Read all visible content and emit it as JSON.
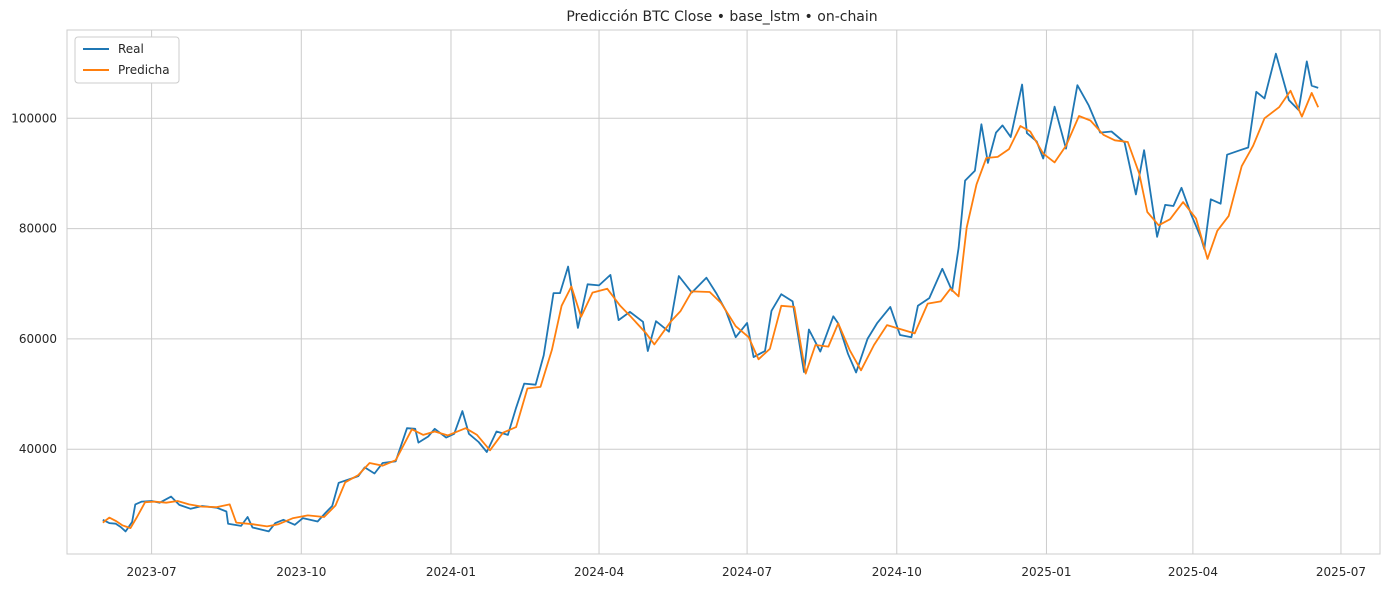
{
  "chart_data": {
    "type": "line",
    "title": "Predicción BTC Close • base_lstm • on-chain",
    "xlabel": "",
    "ylabel": "",
    "grid": true,
    "legend_position": "top-left",
    "x_range": [
      "2023-05-10",
      "2025-07-25"
    ],
    "y_range": [
      21000,
      116000
    ],
    "x_ticks": [
      "2023-07-01",
      "2023-10-01",
      "2024-01-01",
      "2024-04-01",
      "2024-07-01",
      "2024-10-01",
      "2025-01-01",
      "2025-04-01",
      "2025-07-01"
    ],
    "x_tick_labels": [
      "2023-07",
      "2023-10",
      "2024-01",
      "2024-04",
      "2024-07",
      "2024-10",
      "2025-01",
      "2025-04",
      "2025-07"
    ],
    "y_ticks": [
      40000,
      60000,
      80000,
      100000
    ],
    "y_tick_labels": [
      "40000",
      "60000",
      "80000",
      "100000"
    ],
    "series": [
      {
        "name": "Real",
        "color": "#1f77b4",
        "points": [
          [
            "2023-06-01",
            27200
          ],
          [
            "2023-06-05",
            26600
          ],
          [
            "2023-06-09",
            26500
          ],
          [
            "2023-06-12",
            25900
          ],
          [
            "2023-06-15",
            25100
          ],
          [
            "2023-06-19",
            26800
          ],
          [
            "2023-06-21",
            30000
          ],
          [
            "2023-06-25",
            30500
          ],
          [
            "2023-07-01",
            30600
          ],
          [
            "2023-07-06",
            30300
          ],
          [
            "2023-07-13",
            31400
          ],
          [
            "2023-07-18",
            29900
          ],
          [
            "2023-07-25",
            29200
          ],
          [
            "2023-08-01",
            29700
          ],
          [
            "2023-08-10",
            29400
          ],
          [
            "2023-08-16",
            28700
          ],
          [
            "2023-08-17",
            26500
          ],
          [
            "2023-08-25",
            26100
          ],
          [
            "2023-08-29",
            27700
          ],
          [
            "2023-09-01",
            25800
          ],
          [
            "2023-09-11",
            25100
          ],
          [
            "2023-09-15",
            26600
          ],
          [
            "2023-09-20",
            27200
          ],
          [
            "2023-09-27",
            26300
          ],
          [
            "2023-10-02",
            27500
          ],
          [
            "2023-10-11",
            26900
          ],
          [
            "2023-10-16",
            28500
          ],
          [
            "2023-10-20",
            29700
          ],
          [
            "2023-10-24",
            33900
          ],
          [
            "2023-10-31",
            34600
          ],
          [
            "2023-11-05",
            35100
          ],
          [
            "2023-11-09",
            36700
          ],
          [
            "2023-11-15",
            35600
          ],
          [
            "2023-11-20",
            37500
          ],
          [
            "2023-11-28",
            37800
          ],
          [
            "2023-12-05",
            43800
          ],
          [
            "2023-12-10",
            43700
          ],
          [
            "2023-12-12",
            41200
          ],
          [
            "2023-12-18",
            42300
          ],
          [
            "2023-12-22",
            43700
          ],
          [
            "2023-12-29",
            42100
          ],
          [
            "2024-01-03",
            42800
          ],
          [
            "2024-01-08",
            46900
          ],
          [
            "2024-01-12",
            42800
          ],
          [
            "2024-01-18",
            41300
          ],
          [
            "2024-01-23",
            39500
          ],
          [
            "2024-01-29",
            43200
          ],
          [
            "2024-02-05",
            42600
          ],
          [
            "2024-02-10",
            47500
          ],
          [
            "2024-02-15",
            51900
          ],
          [
            "2024-02-22",
            51700
          ],
          [
            "2024-02-27",
            57000
          ],
          [
            "2024-03-04",
            68300
          ],
          [
            "2024-03-08",
            68300
          ],
          [
            "2024-03-13",
            73100
          ],
          [
            "2024-03-19",
            62000
          ],
          [
            "2024-03-25",
            69900
          ],
          [
            "2024-04-01",
            69700
          ],
          [
            "2024-04-08",
            71600
          ],
          [
            "2024-04-13",
            63400
          ],
          [
            "2024-04-20",
            64900
          ],
          [
            "2024-04-28",
            63100
          ],
          [
            "2024-05-01",
            57800
          ],
          [
            "2024-05-06",
            63200
          ],
          [
            "2024-05-14",
            61300
          ],
          [
            "2024-05-20",
            71400
          ],
          [
            "2024-05-28",
            68400
          ],
          [
            "2024-06-06",
            71100
          ],
          [
            "2024-06-12",
            68300
          ],
          [
            "2024-06-18",
            65100
          ],
          [
            "2024-06-24",
            60300
          ],
          [
            "2024-07-01",
            62900
          ],
          [
            "2024-07-05",
            56700
          ],
          [
            "2024-07-12",
            57800
          ],
          [
            "2024-07-16",
            65100
          ],
          [
            "2024-07-22",
            68100
          ],
          [
            "2024-07-29",
            66800
          ],
          [
            "2024-08-05",
            54000
          ],
          [
            "2024-08-08",
            61700
          ],
          [
            "2024-08-15",
            57700
          ],
          [
            "2024-08-23",
            64100
          ],
          [
            "2024-08-26",
            62800
          ],
          [
            "2024-09-01",
            57300
          ],
          [
            "2024-09-06",
            53900
          ],
          [
            "2024-09-13",
            60000
          ],
          [
            "2024-09-19",
            62900
          ],
          [
            "2024-09-27",
            65800
          ],
          [
            "2024-10-03",
            60700
          ],
          [
            "2024-10-10",
            60300
          ],
          [
            "2024-10-14",
            66000
          ],
          [
            "2024-10-21",
            67400
          ],
          [
            "2024-10-29",
            72700
          ],
          [
            "2024-11-04",
            68700
          ],
          [
            "2024-11-08",
            76500
          ],
          [
            "2024-11-12",
            88700
          ],
          [
            "2024-11-18",
            90500
          ],
          [
            "2024-11-22",
            98900
          ],
          [
            "2024-11-26",
            91900
          ],
          [
            "2024-12-01",
            97400
          ],
          [
            "2024-12-05",
            98700
          ],
          [
            "2024-12-10",
            96600
          ],
          [
            "2024-12-17",
            106100
          ],
          [
            "2024-12-20",
            97300
          ],
          [
            "2024-12-26",
            95800
          ],
          [
            "2024-12-30",
            92700
          ],
          [
            "2025-01-06",
            102100
          ],
          [
            "2025-01-13",
            94500
          ],
          [
            "2025-01-20",
            106000
          ],
          [
            "2025-01-27",
            102300
          ],
          [
            "2025-02-03",
            97400
          ],
          [
            "2025-02-10",
            97600
          ],
          [
            "2025-02-18",
            95600
          ],
          [
            "2025-02-25",
            86200
          ],
          [
            "2025-03-02",
            94200
          ],
          [
            "2025-03-10",
            78500
          ],
          [
            "2025-03-15",
            84300
          ],
          [
            "2025-03-20",
            84100
          ],
          [
            "2025-03-25",
            87400
          ],
          [
            "2025-03-31",
            82500
          ],
          [
            "2025-04-06",
            78300
          ],
          [
            "2025-04-08",
            76300
          ],
          [
            "2025-04-12",
            85300
          ],
          [
            "2025-04-18",
            84500
          ],
          [
            "2025-04-22",
            93400
          ],
          [
            "2025-04-30",
            94200
          ],
          [
            "2025-05-05",
            94700
          ],
          [
            "2025-05-10",
            104800
          ],
          [
            "2025-05-15",
            103600
          ],
          [
            "2025-05-22",
            111700
          ],
          [
            "2025-05-30",
            103300
          ],
          [
            "2025-06-05",
            101500
          ],
          [
            "2025-06-10",
            110300
          ],
          [
            "2025-06-13",
            105900
          ],
          [
            "2025-06-17",
            105500
          ]
        ]
      },
      {
        "name": "Predicha",
        "color": "#ff7f0e",
        "points": [
          [
            "2023-06-01",
            26700
          ],
          [
            "2023-06-05",
            27600
          ],
          [
            "2023-06-09",
            27000
          ],
          [
            "2023-06-13",
            26200
          ],
          [
            "2023-06-18",
            25700
          ],
          [
            "2023-06-22",
            27700
          ],
          [
            "2023-06-27",
            30400
          ],
          [
            "2023-07-03",
            30500
          ],
          [
            "2023-07-10",
            30300
          ],
          [
            "2023-07-17",
            30600
          ],
          [
            "2023-07-24",
            30000
          ],
          [
            "2023-08-01",
            29600
          ],
          [
            "2023-08-10",
            29500
          ],
          [
            "2023-08-18",
            30000
          ],
          [
            "2023-08-22",
            26700
          ],
          [
            "2023-09-01",
            26400
          ],
          [
            "2023-09-10",
            26000
          ],
          [
            "2023-09-17",
            26400
          ],
          [
            "2023-09-26",
            27500
          ],
          [
            "2023-10-05",
            28000
          ],
          [
            "2023-10-15",
            27700
          ],
          [
            "2023-10-22",
            29800
          ],
          [
            "2023-10-28",
            34000
          ],
          [
            "2023-11-05",
            35300
          ],
          [
            "2023-11-12",
            37500
          ],
          [
            "2023-11-20",
            37000
          ],
          [
            "2023-11-28",
            38000
          ],
          [
            "2023-12-08",
            43600
          ],
          [
            "2023-12-15",
            42600
          ],
          [
            "2023-12-22",
            43200
          ],
          [
            "2023-12-30",
            42500
          ],
          [
            "2024-01-10",
            43800
          ],
          [
            "2024-01-17",
            42600
          ],
          [
            "2024-01-25",
            39800
          ],
          [
            "2024-02-02",
            43000
          ],
          [
            "2024-02-10",
            44000
          ],
          [
            "2024-02-17",
            51000
          ],
          [
            "2024-02-25",
            51300
          ],
          [
            "2024-03-03",
            58000
          ],
          [
            "2024-03-09",
            66000
          ],
          [
            "2024-03-15",
            69500
          ],
          [
            "2024-03-21",
            64000
          ],
          [
            "2024-03-28",
            68400
          ],
          [
            "2024-04-06",
            69100
          ],
          [
            "2024-04-14",
            66000
          ],
          [
            "2024-04-20",
            64200
          ],
          [
            "2024-04-30",
            61000
          ],
          [
            "2024-05-05",
            59000
          ],
          [
            "2024-05-15",
            63100
          ],
          [
            "2024-05-21",
            65000
          ],
          [
            "2024-05-28",
            68600
          ],
          [
            "2024-06-08",
            68500
          ],
          [
            "2024-06-15",
            66500
          ],
          [
            "2024-06-24",
            62300
          ],
          [
            "2024-07-02",
            60300
          ],
          [
            "2024-07-08",
            56300
          ],
          [
            "2024-07-15",
            58200
          ],
          [
            "2024-07-22",
            66000
          ],
          [
            "2024-07-30",
            65800
          ],
          [
            "2024-08-06",
            53700
          ],
          [
            "2024-08-12",
            58900
          ],
          [
            "2024-08-20",
            58600
          ],
          [
            "2024-08-26",
            62800
          ],
          [
            "2024-09-02",
            58000
          ],
          [
            "2024-09-09",
            54300
          ],
          [
            "2024-09-17",
            58900
          ],
          [
            "2024-09-25",
            62500
          ],
          [
            "2024-10-03",
            61800
          ],
          [
            "2024-10-12",
            61000
          ],
          [
            "2024-10-20",
            66400
          ],
          [
            "2024-10-28",
            66800
          ],
          [
            "2024-11-03",
            69100
          ],
          [
            "2024-11-08",
            67700
          ],
          [
            "2024-11-13",
            80200
          ],
          [
            "2024-11-19",
            88000
          ],
          [
            "2024-11-25",
            92800
          ],
          [
            "2024-12-02",
            93000
          ],
          [
            "2024-12-09",
            94400
          ],
          [
            "2024-12-16",
            98600
          ],
          [
            "2024-12-22",
            97600
          ],
          [
            "2024-12-30",
            93600
          ],
          [
            "2025-01-06",
            92000
          ],
          [
            "2025-01-13",
            95000
          ],
          [
            "2025-01-21",
            100400
          ],
          [
            "2025-01-28",
            99600
          ],
          [
            "2025-02-05",
            97000
          ],
          [
            "2025-02-12",
            96000
          ],
          [
            "2025-02-20",
            95700
          ],
          [
            "2025-02-27",
            90000
          ],
          [
            "2025-03-04",
            83000
          ],
          [
            "2025-03-11",
            80600
          ],
          [
            "2025-03-18",
            81700
          ],
          [
            "2025-03-26",
            84800
          ],
          [
            "2025-04-03",
            81800
          ],
          [
            "2025-04-10",
            74500
          ],
          [
            "2025-04-16",
            79600
          ],
          [
            "2025-04-23",
            82300
          ],
          [
            "2025-05-01",
            91300
          ],
          [
            "2025-05-08",
            95000
          ],
          [
            "2025-05-15",
            100000
          ],
          [
            "2025-05-24",
            102000
          ],
          [
            "2025-05-31",
            105000
          ],
          [
            "2025-06-07",
            100300
          ],
          [
            "2025-06-13",
            104600
          ],
          [
            "2025-06-17",
            102000
          ]
        ]
      }
    ]
  }
}
